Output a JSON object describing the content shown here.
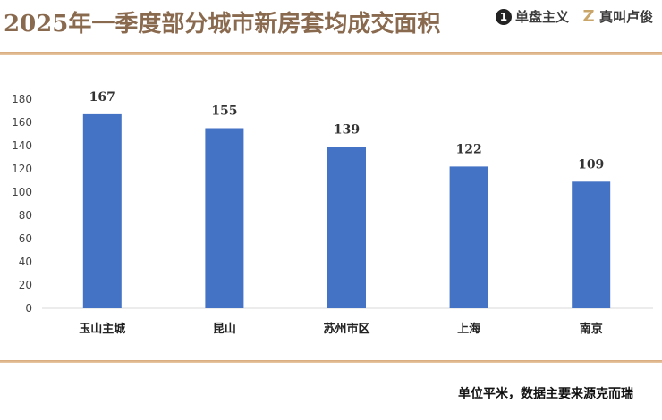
{
  "header": {
    "title": "2025年一季度部分城市新房套均成交面积",
    "logos": [
      {
        "icon": "d-logo-icon",
        "text": "单盘主义"
      },
      {
        "icon": "z-logo-icon",
        "text": "真叫卢俊"
      }
    ]
  },
  "footer": {
    "note": "单位平米，数据主要来源克而瑞"
  },
  "colors": {
    "bar": "#4472c4",
    "title": "#8a6a4f",
    "divider": "#d8a97a"
  },
  "chart_data": {
    "type": "bar",
    "title": "",
    "xlabel": "",
    "ylabel": "",
    "categories": [
      "玉山主城",
      "昆山",
      "苏州市区",
      "上海",
      "南京"
    ],
    "values": [
      167,
      155,
      139,
      122,
      109
    ],
    "ylim": [
      0,
      180
    ],
    "yticks": [
      0,
      20,
      40,
      60,
      80,
      100,
      120,
      140,
      160,
      180
    ],
    "grid": false,
    "legend": "none"
  }
}
